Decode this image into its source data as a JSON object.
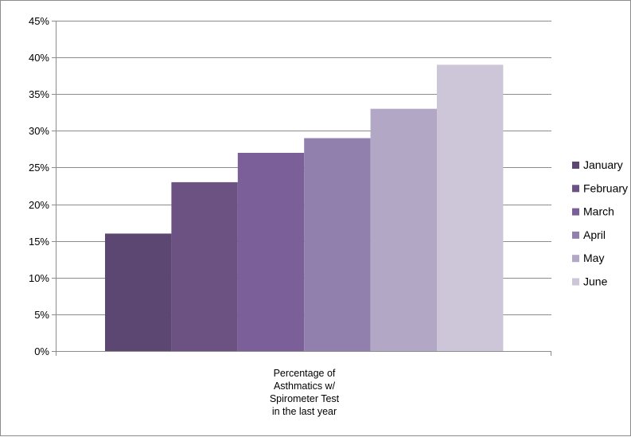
{
  "chart_data": {
    "type": "bar",
    "title": "",
    "categories": [
      "Percentage of Asthmatics w/ Spirometer Test in the last year"
    ],
    "category_label_lines": [
      "Percentage of",
      "Asthmatics w/",
      "Spirometer Test",
      "in the last year"
    ],
    "series": [
      {
        "name": "January",
        "values": [
          16
        ],
        "color": "#5c4772"
      },
      {
        "name": "February",
        "values": [
          23
        ],
        "color": "#6b5283"
      },
      {
        "name": "March",
        "values": [
          27
        ],
        "color": "#7a5f98"
      },
      {
        "name": "April",
        "values": [
          29
        ],
        "color": "#9180ae"
      },
      {
        "name": "May",
        "values": [
          33
        ],
        "color": "#b2a7c5"
      },
      {
        "name": "June",
        "values": [
          39
        ],
        "color": "#cdc6d9"
      }
    ],
    "ylim": [
      0,
      45
    ],
    "y_ticks": [
      0,
      5,
      10,
      15,
      20,
      25,
      30,
      35,
      40,
      45
    ],
    "y_tick_labels": [
      "0%",
      "5%",
      "10%",
      "15%",
      "20%",
      "25%",
      "30%",
      "35%",
      "40%",
      "45%"
    ],
    "grid": true,
    "legend": "right",
    "xlabel": "",
    "ylabel": ""
  }
}
